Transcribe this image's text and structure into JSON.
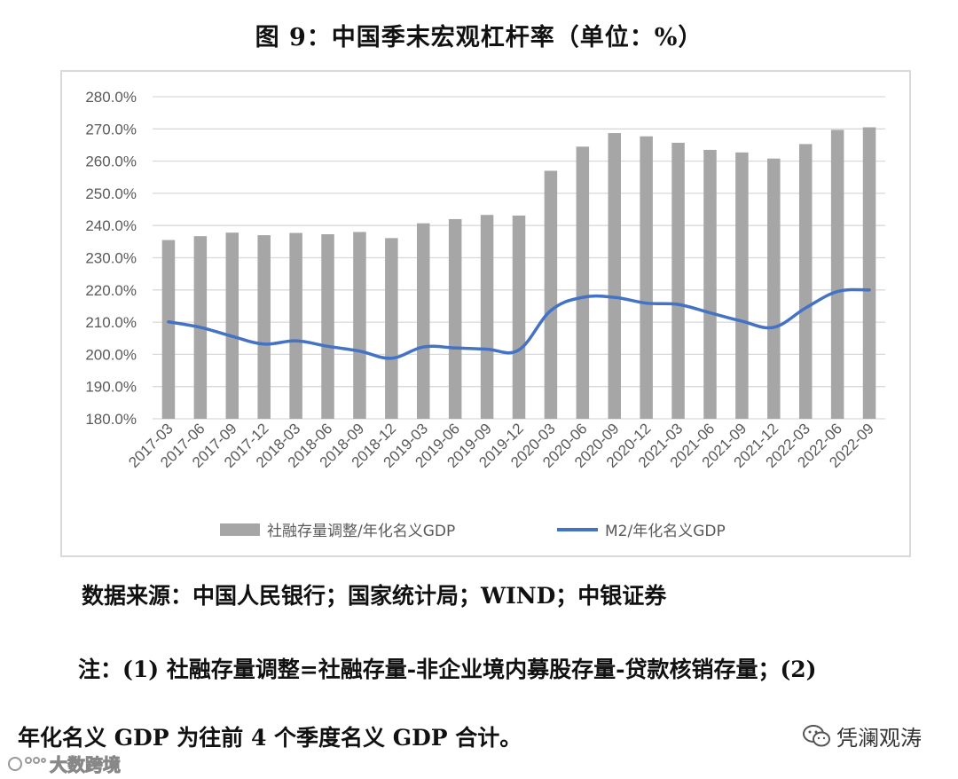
{
  "title": "图 9：中国季末宏观杠杆率（单位：%）",
  "chart_data": {
    "type": "bar+line",
    "categories": [
      "2017-03",
      "2017-06",
      "2017-09",
      "2017-12",
      "2018-03",
      "2018-06",
      "2018-09",
      "2018-12",
      "2019-03",
      "2019-06",
      "2019-09",
      "2019-12",
      "2020-03",
      "2020-06",
      "2020-09",
      "2020-12",
      "2021-03",
      "2021-06",
      "2021-09",
      "2021-12",
      "2022-03",
      "2022-06",
      "2022-09"
    ],
    "series": [
      {
        "name": "社融存量调整/年化名义GDP",
        "kind": "bar",
        "color": "#a6a6a6",
        "values": [
          235.5,
          236.7,
          237.8,
          237.0,
          237.7,
          237.3,
          238.0,
          236.1,
          240.7,
          242.0,
          243.3,
          243.1,
          257.0,
          264.5,
          268.7,
          267.7,
          265.7,
          263.5,
          262.7,
          260.8,
          265.3,
          269.7,
          270.5
        ]
      },
      {
        "name": "M2/年化名义GDP",
        "kind": "line",
        "color": "#4472c4",
        "values": [
          210.1,
          208.4,
          205.6,
          203.2,
          204.2,
          202.5,
          201.0,
          198.8,
          202.3,
          202.0,
          201.6,
          201.4,
          213.6,
          217.7,
          217.7,
          215.9,
          215.5,
          212.9,
          210.3,
          208.4,
          214.4,
          219.5,
          220.0
        ]
      }
    ],
    "ylim": [
      180,
      280
    ],
    "yticks": [
      "180.0%",
      "190.0%",
      "200.0%",
      "210.0%",
      "220.0%",
      "230.0%",
      "240.0%",
      "250.0%",
      "260.0%",
      "270.0%",
      "280.0%"
    ],
    "grid": true,
    "legend_position": "bottom"
  },
  "source_text": "数据来源：中国人民银行；国家统计局；WIND；中银证券",
  "note_line1": "注：(1) 社融存量调整=社融存量-非企业境内募股存量-贷款核销存量；(2)",
  "note_line2": "年化名义 GDP 为往前 4 个季度名义 GDP 合计。",
  "watermark_right": "凭澜观涛",
  "watermark_left": "大数跨境",
  "colors": {
    "bar": "#a6a6a6",
    "line": "#4472c4",
    "grid": "#d9d9d9",
    "axis_text": "#595959"
  }
}
